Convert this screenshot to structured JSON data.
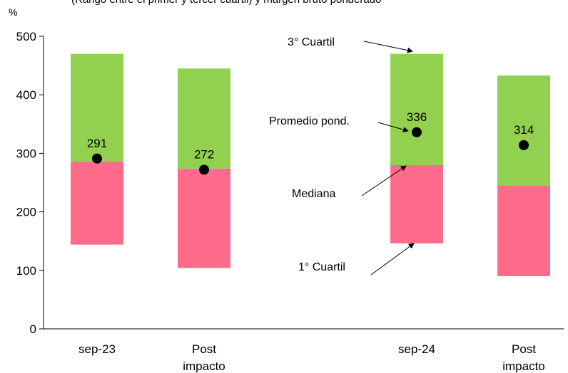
{
  "chart_data": {
    "type": "bar",
    "title": "(Rango entre el primer y tercer cuartil) y margen bruto ponderado",
    "ylabel": "%",
    "ylim": [
      0,
      500
    ],
    "yticks": [
      0,
      100,
      200,
      300,
      400,
      500
    ],
    "categories": [
      "sep-23",
      "Post impacto",
      "sep-24",
      "Post impacto"
    ],
    "category_lines": [
      [
        "sep-23"
      ],
      [
        "Post",
        "impacto"
      ],
      [
        "sep-24"
      ],
      [
        "Post",
        "impacto"
      ]
    ],
    "series": [
      {
        "name": "1° Cuartil",
        "values": [
          144,
          104,
          146,
          90
        ]
      },
      {
        "name": "Mediana",
        "values": [
          286,
          274,
          280,
          245
        ]
      },
      {
        "name": "3° Cuartil",
        "values": [
          470,
          445,
          470,
          433
        ]
      },
      {
        "name": "Promedio pond.",
        "values": [
          291,
          272,
          336,
          314
        ]
      }
    ],
    "data_labels": [
      "291",
      "272",
      "336",
      "314"
    ],
    "annotations": [
      "3° Cuartil",
      "Promedio pond.",
      "Mediana",
      "1° Cuartil"
    ],
    "colors": {
      "lower_box": "#ff6b8a",
      "upper_box": "#92d050",
      "marker": "#000000"
    },
    "grid": false,
    "legend": "annotations"
  }
}
